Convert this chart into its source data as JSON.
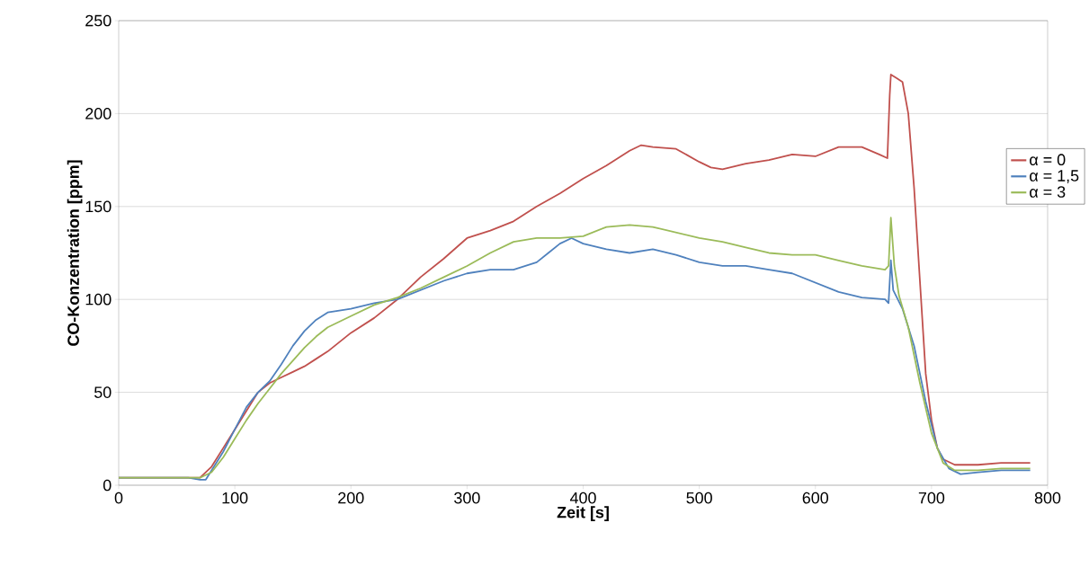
{
  "chart_data": {
    "type": "line",
    "xlabel": "Zeit [s]",
    "ylabel": "CO-Konzentration [ppm]",
    "xlim": [
      0,
      800
    ],
    "ylim": [
      0,
      250
    ],
    "xticks": [
      0,
      100,
      200,
      300,
      400,
      500,
      600,
      700,
      800
    ],
    "yticks": [
      0,
      50,
      100,
      150,
      200,
      250
    ],
    "grid": "y",
    "legend": "right",
    "marker": "none",
    "line_style": "solid",
    "series": [
      {
        "name": "α = 0",
        "color": "#c0504d",
        "x": [
          0,
          60,
          70,
          80,
          90,
          100,
          110,
          120,
          130,
          140,
          150,
          160,
          170,
          180,
          190,
          200,
          220,
          240,
          260,
          280,
          300,
          320,
          340,
          360,
          380,
          400,
          420,
          440,
          450,
          460,
          480,
          500,
          510,
          520,
          540,
          560,
          580,
          600,
          620,
          640,
          655,
          662,
          664,
          665,
          670,
          675,
          680,
          685,
          690,
          695,
          700,
          705,
          710,
          720,
          740,
          760,
          785
        ],
        "values": [
          4,
          4,
          4,
          10,
          20,
          30,
          40,
          50,
          55,
          58,
          61,
          64,
          68,
          72,
          77,
          82,
          90,
          100,
          112,
          122,
          133,
          137,
          142,
          150,
          157,
          165,
          172,
          180,
          183,
          182,
          181,
          174,
          171,
          170,
          173,
          175,
          178,
          177,
          182,
          182,
          178,
          176,
          210,
          221,
          219,
          217,
          200,
          160,
          110,
          60,
          35,
          20,
          14,
          11,
          11,
          12,
          12
        ]
      },
      {
        "name": "α = 1,5",
        "color": "#4f81bd",
        "x": [
          0,
          60,
          70,
          75,
          80,
          90,
          100,
          110,
          120,
          130,
          140,
          150,
          160,
          170,
          180,
          200,
          220,
          240,
          260,
          280,
          300,
          320,
          340,
          360,
          370,
          380,
          390,
          400,
          420,
          440,
          460,
          480,
          500,
          520,
          540,
          560,
          580,
          600,
          620,
          640,
          660,
          663,
          665,
          667,
          675,
          685,
          695,
          705,
          715,
          725,
          740,
          760,
          785
        ],
        "values": [
          4,
          4,
          3,
          3,
          8,
          18,
          30,
          42,
          50,
          56,
          65,
          75,
          83,
          89,
          93,
          95,
          98,
          100,
          105,
          110,
          114,
          116,
          116,
          120,
          125,
          130,
          133,
          130,
          127,
          125,
          127,
          124,
          120,
          118,
          118,
          116,
          114,
          109,
          104,
          101,
          100,
          98,
          121,
          105,
          95,
          75,
          45,
          20,
          9,
          6,
          7,
          8,
          8
        ]
      },
      {
        "name": "α = 3",
        "color": "#9bbb59",
        "x": [
          0,
          60,
          70,
          80,
          90,
          100,
          110,
          120,
          130,
          140,
          150,
          160,
          170,
          180,
          200,
          220,
          240,
          260,
          280,
          300,
          320,
          340,
          360,
          380,
          400,
          420,
          440,
          460,
          480,
          500,
          520,
          540,
          560,
          580,
          600,
          620,
          640,
          660,
          663,
          665,
          668,
          672,
          680,
          690,
          700,
          710,
          720,
          740,
          760,
          785
        ],
        "values": [
          4,
          4,
          4,
          7,
          15,
          25,
          35,
          44,
          52,
          60,
          67,
          74,
          80,
          85,
          91,
          97,
          101,
          106,
          112,
          118,
          125,
          131,
          133,
          133,
          134,
          139,
          140,
          139,
          136,
          133,
          131,
          128,
          125,
          124,
          124,
          121,
          118,
          116,
          118,
          144,
          118,
          102,
          85,
          55,
          28,
          12,
          8,
          8,
          9,
          9
        ]
      }
    ]
  }
}
